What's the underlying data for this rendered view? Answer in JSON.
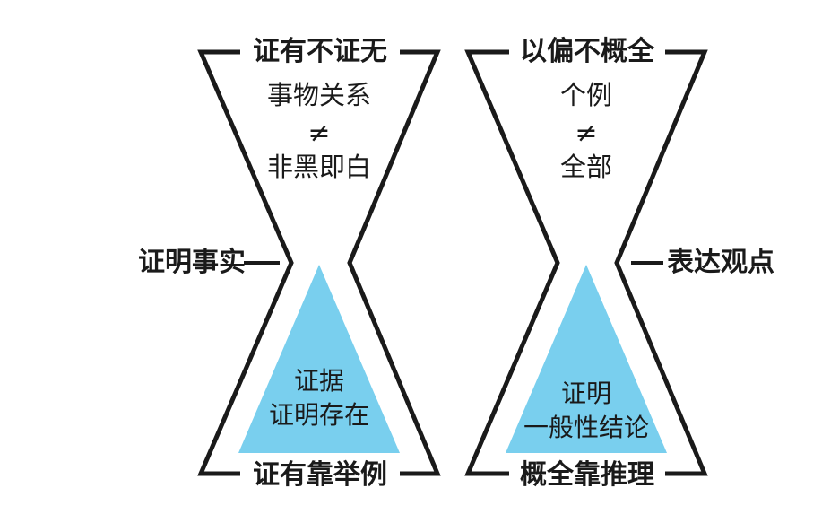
{
  "left_panel": {
    "top_label": "证有不证无",
    "inner_text_1": "事物关系",
    "inner_ne": "≠",
    "inner_text_2": "非黑即白",
    "side_label": "证明事实",
    "triangle_line_1": "证据",
    "triangle_line_2": "证明存在",
    "bottom_label": "证有靠举例"
  },
  "right_panel": {
    "top_label": "以偏不概全",
    "inner_text_1": "个例",
    "inner_ne": "≠",
    "inner_text_2": "全部",
    "side_label": "表达观点",
    "triangle_line_1": "证明",
    "triangle_line_2": "一般性结论",
    "bottom_label": "概全靠推理"
  },
  "colors": {
    "triangle_fill": "#79cfee",
    "outline": "#1a1a1a",
    "background": "#ffffff"
  }
}
